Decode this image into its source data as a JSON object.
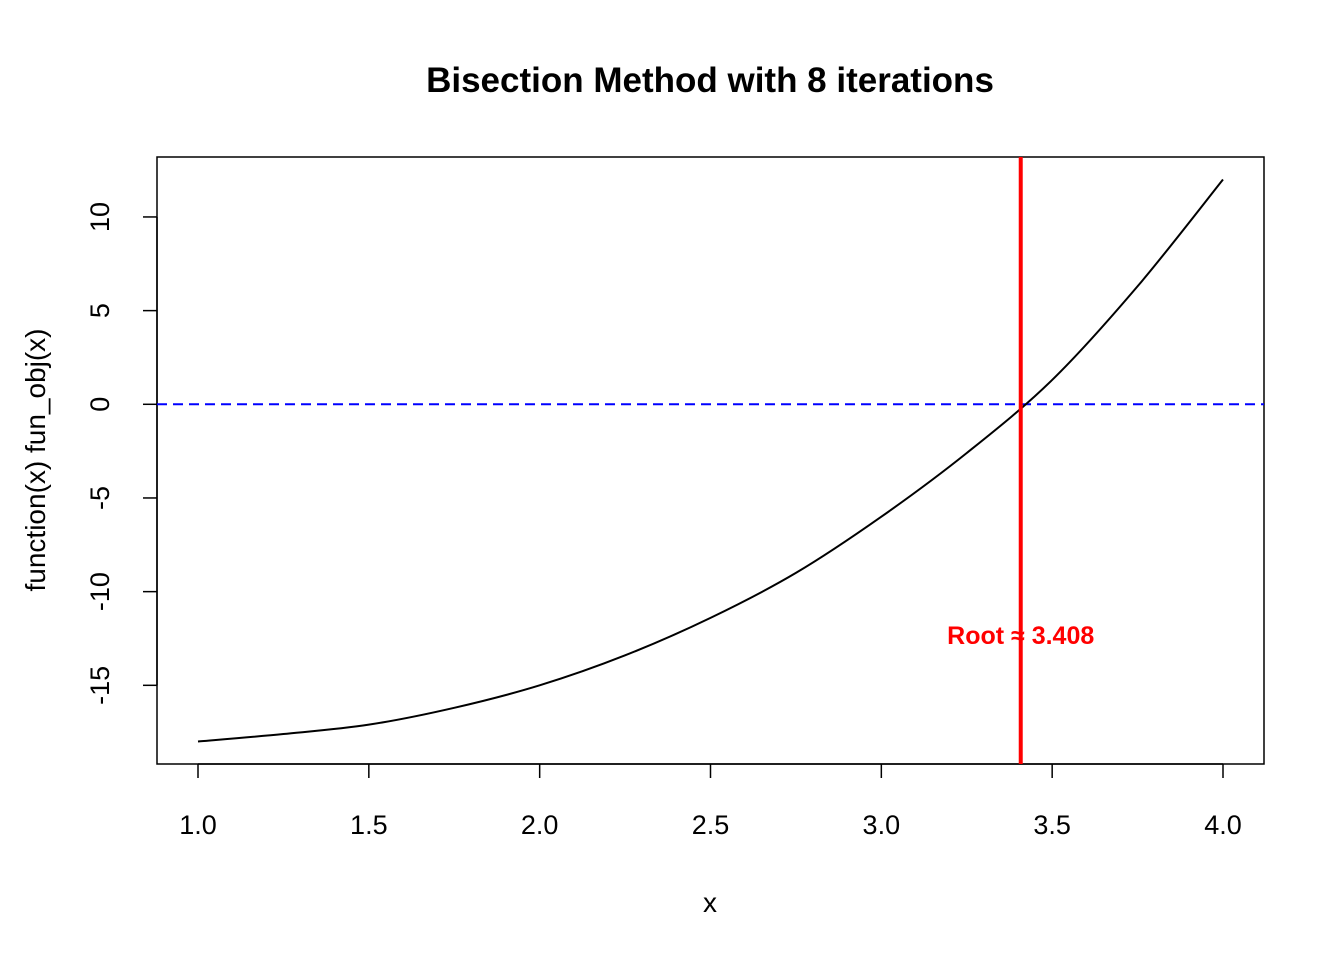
{
  "chart_data": {
    "type": "line",
    "title": "Bisection Method with 8 iterations",
    "xlabel": "x",
    "ylabel": "function(x) fun_obj(x)",
    "xlim": [
      0.88,
      4.12
    ],
    "ylim": [
      -19.2,
      13.2
    ],
    "x_ticks": [
      1.0,
      1.5,
      2.0,
      2.5,
      3.0,
      3.5,
      4.0
    ],
    "x_tick_labels": [
      "1.0",
      "1.5",
      "2.0",
      "2.5",
      "3.0",
      "3.5",
      "4.0"
    ],
    "y_ticks": [
      -15,
      -10,
      -5,
      0,
      5,
      10
    ],
    "y_tick_labels": [
      "-15",
      "-10",
      "-5",
      "0",
      "5",
      "10"
    ],
    "grid": false,
    "series": [
      {
        "x": [
          1.0,
          1.25,
          1.5,
          1.75,
          2.0,
          2.25,
          2.5,
          2.75,
          3.0,
          3.25,
          3.5,
          3.75,
          4.0
        ],
        "y": [
          -18.0,
          -17.6,
          -17.1,
          -16.2,
          -15.0,
          -13.4,
          -11.4,
          -9.0,
          -6.0,
          -2.6,
          1.3,
          6.3,
          12.0
        ],
        "color": "#000000"
      }
    ],
    "hline": {
      "y": 0,
      "color": "#0000ff",
      "style": "dashed"
    },
    "vline": {
      "x": 3.408,
      "color": "#ff0000"
    },
    "annotation": {
      "text": "Root ≈ 3.408",
      "x": 3.408,
      "y": -12.8,
      "color": "#ff0000"
    }
  }
}
